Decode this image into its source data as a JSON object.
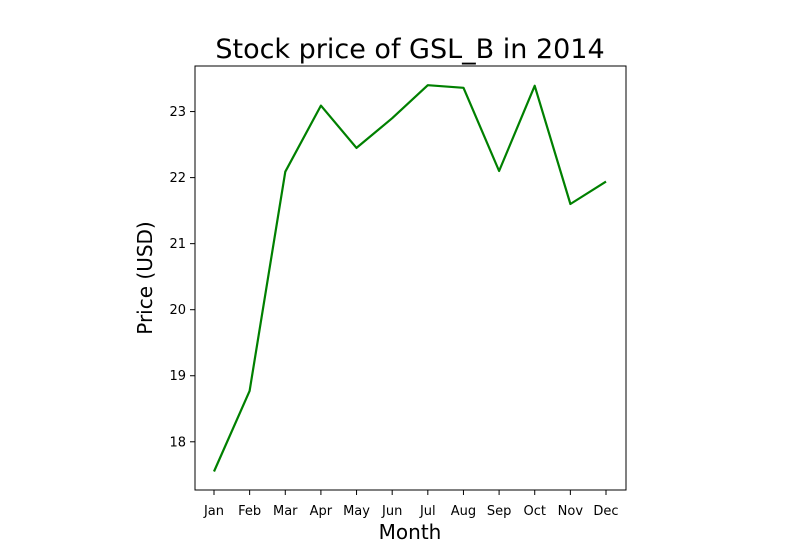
{
  "chart_data": {
    "type": "line",
    "title": "Stock price of GSL_B in 2014",
    "xlabel": "Month",
    "ylabel": "Price (USD)",
    "categories": [
      "Jan",
      "Feb",
      "Mar",
      "Apr",
      "May",
      "Jun",
      "Jul",
      "Aug",
      "Sep",
      "Oct",
      "Nov",
      "Dec"
    ],
    "series": [
      {
        "values": [
          17.55,
          18.77,
          22.09,
          23.09,
          22.45,
          22.9,
          23.4,
          23.36,
          22.1,
          23.39,
          21.6,
          21.94
        ],
        "color": "#008000"
      }
    ],
    "ylim": [
      17.27,
      23.69
    ],
    "yticks": [
      18,
      19,
      20,
      21,
      22,
      23
    ],
    "grid": false,
    "legend": "none"
  }
}
